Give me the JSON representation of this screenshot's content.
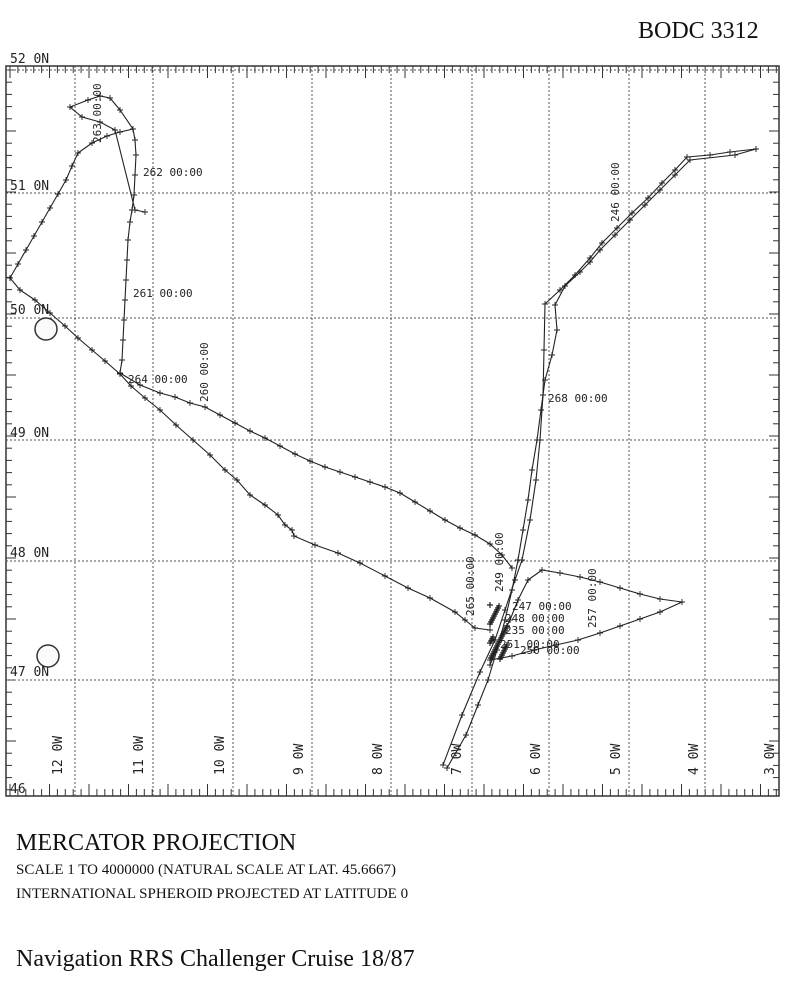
{
  "header": {
    "ref": "BODC 3312"
  },
  "map": {
    "lat_labels": [
      "52 0N",
      "51 0N",
      "50 0N",
      "49 0N",
      "48 0N",
      "47 0N",
      "46"
    ],
    "lon_labels": [
      "12 0W",
      "11 0W",
      "10 0W",
      "9 0W",
      "8 0W",
      "7 0W",
      "6 0W",
      "5 0W",
      "4 0W",
      "3 0W"
    ],
    "track_labels": [
      "262 00:00",
      "261 00:00",
      "264 00:00",
      "260 00:00",
      "263 00:00",
      "246 00:00",
      "268 00:00",
      "265 00:00",
      "247 00:00",
      "248 00:00",
      "235 00:00",
      "251 00:00",
      "257 00:00",
      "250 00:00",
      "249 00:00"
    ],
    "colors": {
      "track": "#222222",
      "grid": "#555555"
    }
  },
  "footer": {
    "projection": "MERCATOR PROJECTION",
    "scale": "SCALE 1 TO 4000000 (NATURAL SCALE AT LAT. 45.6667)",
    "spheroid": "INTERNATIONAL SPHEROID PROJECTED AT LATITUDE 0",
    "caption": "Navigation RRS Challenger Cruise 18/87"
  }
}
